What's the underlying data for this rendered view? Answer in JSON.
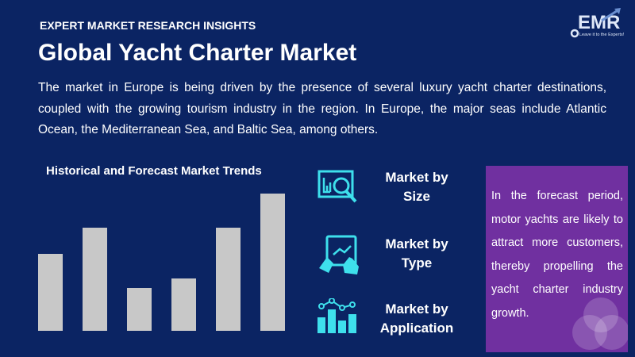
{
  "header": {
    "kicker": "EXPERT MARKET RESEARCH INSIGHTS",
    "title": "Global Yacht Charter Market",
    "logo_text": "EMR",
    "logo_tagline": "Leave it to the Experts!"
  },
  "description": "The market in Europe is being driven by the presence of several luxury yacht charter destinations, coupled with the growing tourism industry in the region. In Europe, the major seas include Atlantic Ocean, the Mediterranean Sea, and Baltic Sea, among others.",
  "chart_data": {
    "type": "bar",
    "title": "Historical and Forecast Market Trends",
    "categories": [
      "",
      "",
      "",
      "",
      "",
      ""
    ],
    "values": [
      56,
      75,
      31,
      38,
      75,
      100
    ],
    "ylim": [
      0,
      100
    ],
    "grid": false,
    "color": "#c8c8c8"
  },
  "categories": [
    {
      "label": "Market by Size",
      "icon": "chart-magnifier-icon"
    },
    {
      "label": "Market by Type",
      "icon": "tablet-touch-icon"
    },
    {
      "label": "Market by Application",
      "icon": "bar-line-chart-icon"
    }
  ],
  "note": "In the forecast period, motor yachts are likely to attract more customers, thereby propelling the yacht charter industry growth.",
  "colors": {
    "background": "#0b2463",
    "accent": "#3ee0ec",
    "note_bg": "#7030a0"
  }
}
